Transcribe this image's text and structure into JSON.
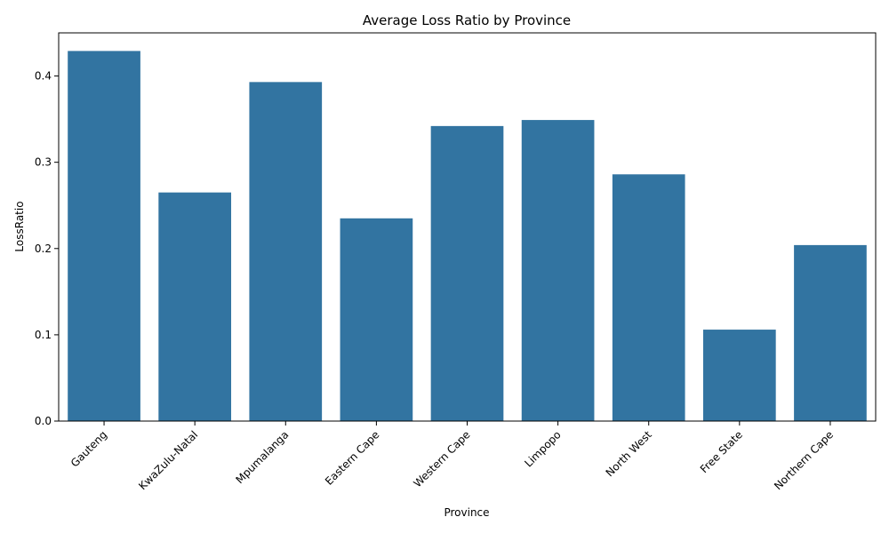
{
  "chart_data": {
    "type": "bar",
    "title": "Average Loss Ratio by Province",
    "xlabel": "Province",
    "ylabel": "LossRatio",
    "categories": [
      "Gauteng",
      "KwaZulu-Natal",
      "Mpumalanga",
      "Eastern Cape",
      "Western Cape",
      "Limpopo",
      "North West",
      "Free State",
      "Northern Cape"
    ],
    "values": [
      0.429,
      0.265,
      0.393,
      0.235,
      0.342,
      0.349,
      0.286,
      0.106,
      0.204
    ],
    "ylim": [
      0,
      0.45
    ],
    "yticks": [
      0.0,
      0.1,
      0.2,
      0.3,
      0.4
    ],
    "ytick_labels": [
      "0.0",
      "0.1",
      "0.2",
      "0.3",
      "0.4"
    ],
    "bar_color": "#3274a1",
    "grid": false,
    "legend": "none",
    "xtick_rotation_deg": 45
  }
}
